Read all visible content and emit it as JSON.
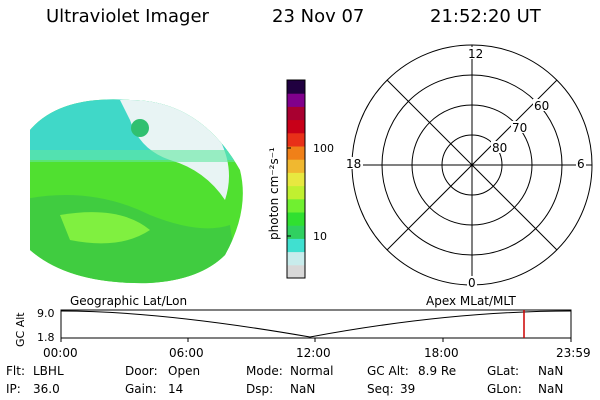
{
  "header": {
    "instrument": "Ultraviolet Imager",
    "date": "23 Nov 07",
    "time": "21:52:20 UT"
  },
  "colorbar": {
    "unit_label": "photon cm⁻²s⁻¹",
    "ticks": [
      "100",
      "10"
    ],
    "colors": [
      "#d8d8d8",
      "#c8ecec",
      "#40e0d0",
      "#30d060",
      "#30e030",
      "#70f030",
      "#c0f030",
      "#e8e840",
      "#f0b830",
      "#f08018",
      "#e83018",
      "#c80018",
      "#a80030",
      "#80008c",
      "#200040"
    ]
  },
  "polar": {
    "mlt_labels": {
      "top": "12",
      "left": "18",
      "right": "6",
      "bottom": "0"
    },
    "lat_labels": [
      "60",
      "70",
      "80"
    ]
  },
  "timeline": {
    "y_axis_label": "GC Alt",
    "left_label": "Geographic Lat/Lon",
    "right_label": "Apex MLat/MLT",
    "y_ticks": [
      "9.0",
      "1.8"
    ],
    "x_ticks": [
      "00:00",
      "06:00",
      "12:00",
      "18:00",
      "23:59"
    ],
    "marker_color": "#cc0000"
  },
  "status": {
    "flt_label": "Flt:",
    "flt_value": "LBHL",
    "ip_label": "IP:",
    "ip_value": "36.0",
    "door_label": "Door:",
    "door_value": "Open",
    "gain_label": "Gain:",
    "gain_value": "14",
    "mode_label": "Mode:",
    "mode_value": "Normal",
    "dsp_label": "Dsp:",
    "dsp_value": "NaN",
    "gcalt_label": "GC Alt:",
    "gcalt_value": "8.9 Re",
    "seq_label": "Seq:",
    "seq_value": "39",
    "glat_label": "GLat:",
    "glat_value": "NaN",
    "glon_label": "GLon:",
    "glon_value": "NaN"
  }
}
